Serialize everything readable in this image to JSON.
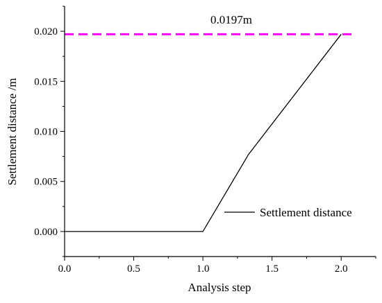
{
  "chart_data": {
    "type": "line",
    "xlabel": "Analysis step",
    "ylabel": "Settlement distance /m",
    "xlim": [
      0.0,
      2.25
    ],
    "ylim": [
      -0.0025,
      0.0225
    ],
    "xticks": [
      0.0,
      0.5,
      1.0,
      1.5,
      2.0
    ],
    "xtick_labels": [
      "0.0",
      "0.5",
      "1.0",
      "1.5",
      "2.0"
    ],
    "yticks": [
      0.0,
      0.005,
      0.01,
      0.015,
      0.02
    ],
    "ytick_labels": [
      "0.000",
      "0.005",
      "0.010",
      "0.015",
      "0.020"
    ],
    "grid": false,
    "legend": {
      "position": "lower-right"
    },
    "series": [
      {
        "name": "Settlement distance",
        "color": "#000000",
        "points": [
          [
            0.0,
            0.0
          ],
          [
            1.0,
            0.0
          ],
          [
            1.33,
            0.0077
          ],
          [
            2.0,
            0.0197
          ]
        ]
      }
    ],
    "reference_line": {
      "y": 0.0197,
      "x_range": [
        0.0,
        2.1
      ],
      "label": "0.0197m",
      "color": "#ff00ff",
      "style": "dashed"
    }
  }
}
